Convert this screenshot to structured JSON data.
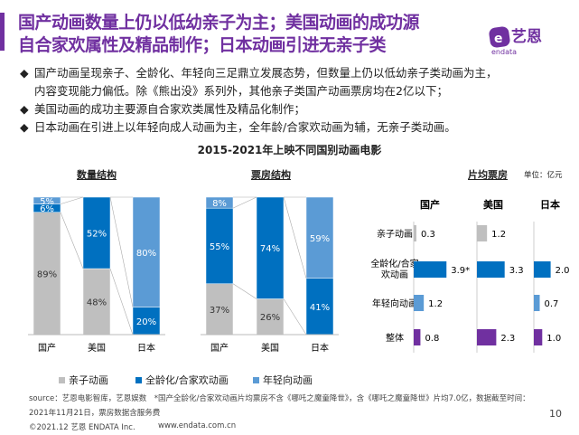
{
  "header": {
    "title_line1": "国产动画数量上仍以低幼亲子为主；美国动画的成功源",
    "title_line2": "自合家欢属性及精品制作；日本动画引进无亲子类",
    "logo_text": "艺恩",
    "logo_sub": "endata"
  },
  "bullets": [
    "国产动画呈现亲子、全龄化、年轻向三足鼎立发展态势，但数量上仍以低幼亲子类动画为主，",
    "内容变现能力偏低。除《熊出没》系列外，其他亲子类国产动画票房均在2亿以下；",
    "美国动画的成功主要源自合家欢类属性及精品化制作；",
    "日本动画在引进上以年轻向成人动画为主，全年龄/合家欢动画为辅，无亲子类动画。"
  ],
  "colors": {
    "亲子": "#bfbfbf",
    "全龄": "#0070c0",
    "年轻": "#5b9bd5",
    "整体": "#7030a0",
    "title": "#7030a0"
  },
  "chart_data": [
    {
      "type": "bar",
      "stacked": true,
      "title": "2015-2021年上映不同国别动画电影",
      "subtitle": "数量结构",
      "categories": [
        "国产",
        "美国",
        "日本"
      ],
      "series": [
        {
          "name": "亲子动画",
          "values": [
            89,
            48,
            0
          ]
        },
        {
          "name": "全龄化/合家欢动画",
          "values": [
            6,
            52,
            20
          ]
        },
        {
          "name": "年轻向动画",
          "values": [
            5,
            0,
            80
          ]
        }
      ],
      "unit": "%"
    },
    {
      "type": "bar",
      "stacked": true,
      "subtitle": "票房结构",
      "categories": [
        "国产",
        "美国",
        "日本"
      ],
      "series": [
        {
          "name": "亲子动画",
          "values": [
            37,
            26,
            0
          ]
        },
        {
          "name": "全龄化/合家欢动画",
          "values": [
            55,
            74,
            41
          ]
        },
        {
          "name": "年轻向动画",
          "values": [
            8,
            0,
            59
          ]
        }
      ],
      "unit": "%"
    },
    {
      "type": "bar",
      "orientation": "horizontal",
      "subtitle": "片均票房",
      "unit_label": "单位：亿元",
      "columns": [
        "国产",
        "美国",
        "日本"
      ],
      "rows": [
        "亲子动画",
        "全龄化/合家欢动画",
        "年轻向动画",
        "整体"
      ],
      "values": [
        [
          0.3,
          1.2,
          null
        ],
        [
          3.9,
          3.3,
          2.0
        ],
        [
          1.2,
          null,
          0.7
        ],
        [
          0.8,
          2.3,
          1.0
        ]
      ],
      "labels": [
        [
          "0.3",
          "1.2",
          null
        ],
        [
          "3.9*",
          "3.3",
          "2.0"
        ],
        [
          "1.2",
          null,
          "0.7"
        ],
        [
          "0.8",
          "2.3",
          "1.0"
        ]
      ]
    }
  ],
  "legend": [
    "亲子动画",
    "全龄化/合家欢动画",
    "年轻向动画"
  ],
  "footer": {
    "source": "source：艺恩电影智库，艺恩娱数　*国产全龄化/合家欢动画片均票房不含《哪吒之魔童降世》，含《哪吒之魔童降世》片均7.0亿，数据截至时间：",
    "source2": "2021年11月21日，票房数据含服务费",
    "copyright": "©2021.12 艺恩 ENDATA Inc.",
    "url": "www.endata.com.cn",
    "page": "10"
  }
}
